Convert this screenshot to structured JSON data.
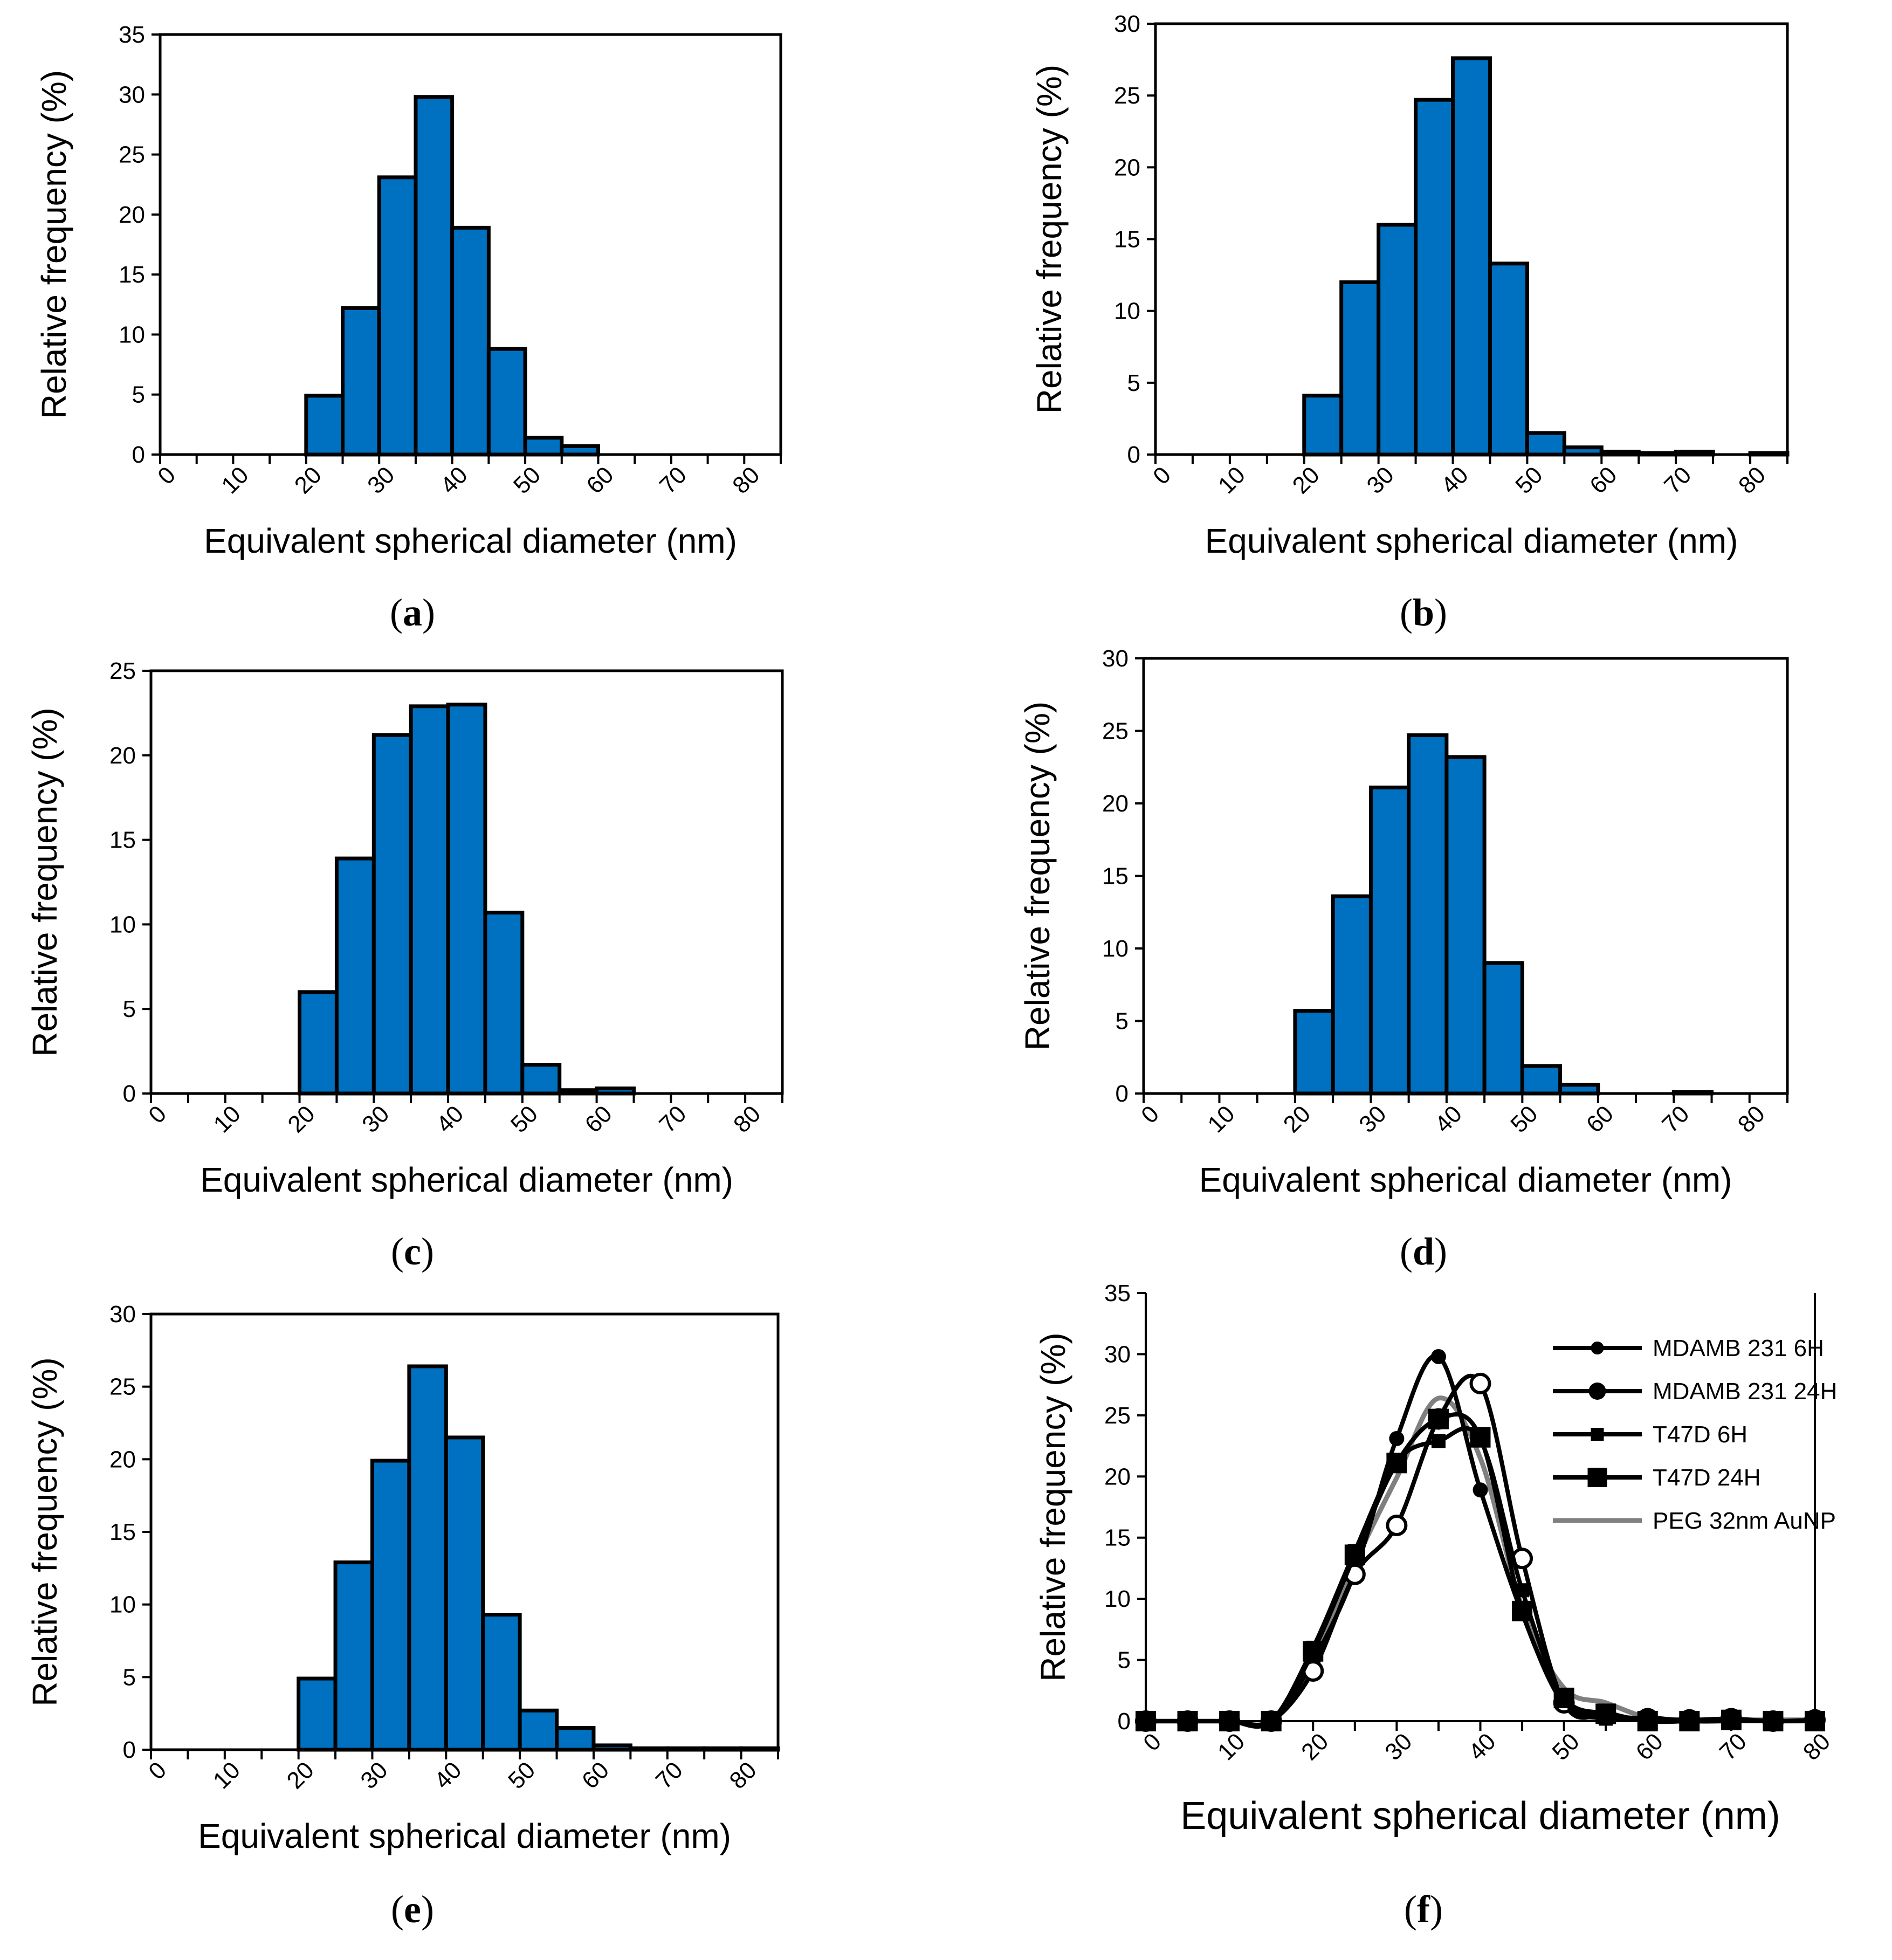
{
  "figure": {
    "panels": [
      {
        "id": "a",
        "label_text": "a",
        "chart_ref": 0
      },
      {
        "id": "b",
        "label_text": "b",
        "chart_ref": 1
      },
      {
        "id": "c",
        "label_text": "c",
        "chart_ref": 2
      },
      {
        "id": "d",
        "label_text": "d",
        "chart_ref": 3
      },
      {
        "id": "e",
        "label_text": "e",
        "chart_ref": 4
      },
      {
        "id": "f",
        "label_text": "f",
        "chart_ref": 5
      }
    ]
  },
  "colors": {
    "bar_fill": "#0070C0",
    "ink": "#000000",
    "peg_line": "#808080"
  },
  "chart_data": [
    {
      "type": "bar",
      "panel": "a",
      "xlabel": "Equivalent spherical diameter (nm)",
      "ylabel": "Relative frequency (%)",
      "x_ticks": [
        "0",
        "10",
        "20",
        "30",
        "40",
        "50",
        "60",
        "70",
        "80"
      ],
      "y_ticks": [
        "0",
        "5",
        "10",
        "15",
        "20",
        "25",
        "30",
        "35"
      ],
      "ylim": [
        0,
        35
      ],
      "xlim": [
        0,
        85
      ],
      "bin_width": 5,
      "bin_starts": [
        0,
        5,
        10,
        15,
        20,
        25,
        30,
        35,
        40,
        45,
        50,
        55,
        60,
        65,
        70,
        75,
        80
      ],
      "values": [
        0,
        0,
        0,
        0,
        4.9,
        12.2,
        23.1,
        29.8,
        18.9,
        8.8,
        1.4,
        0.7,
        0,
        0,
        0,
        0,
        0
      ]
    },
    {
      "type": "bar",
      "panel": "b",
      "xlabel": "Equivalent spherical diameter (nm)",
      "ylabel": "Relative frequency (%)",
      "x_ticks": [
        "0",
        "10",
        "20",
        "30",
        "40",
        "50",
        "60",
        "70",
        "80"
      ],
      "y_ticks": [
        "0",
        "5",
        "10",
        "15",
        "20",
        "25",
        "30"
      ],
      "ylim": [
        0,
        30
      ],
      "xlim": [
        0,
        85
      ],
      "bin_width": 5,
      "bin_starts": [
        0,
        5,
        10,
        15,
        20,
        25,
        30,
        35,
        40,
        45,
        50,
        55,
        60,
        65,
        70,
        75,
        80
      ],
      "values": [
        0,
        0,
        0,
        0,
        4.1,
        12,
        16,
        24.7,
        27.6,
        13.3,
        1.5,
        0.5,
        0.2,
        0.1,
        0.2,
        0,
        0.1
      ]
    },
    {
      "type": "bar",
      "panel": "c",
      "xlabel": "Equivalent spherical diameter (nm)",
      "ylabel": "Relative frequency (%)",
      "x_ticks": [
        "0",
        "10",
        "20",
        "30",
        "40",
        "50",
        "60",
        "70",
        "80"
      ],
      "y_ticks": [
        "0",
        "5",
        "10",
        "15",
        "20",
        "25"
      ],
      "ylim": [
        0,
        25
      ],
      "xlim": [
        0,
        85
      ],
      "bin_width": 5,
      "bin_starts": [
        0,
        5,
        10,
        15,
        20,
        25,
        30,
        35,
        40,
        45,
        50,
        55,
        60,
        65,
        70,
        75,
        80
      ],
      "values": [
        0,
        0,
        0,
        0,
        6,
        13.9,
        21.2,
        22.9,
        23,
        10.7,
        1.7,
        0.2,
        0.3,
        0,
        0,
        0,
        0
      ]
    },
    {
      "type": "bar",
      "panel": "d",
      "xlabel": "Equivalent spherical diameter (nm)",
      "ylabel": "Relative frequency (%)",
      "x_ticks": [
        "0",
        "10",
        "20",
        "30",
        "40",
        "50",
        "60",
        "70",
        "80"
      ],
      "y_ticks": [
        "0",
        "5",
        "10",
        "15",
        "20",
        "25",
        "30"
      ],
      "ylim": [
        0,
        30
      ],
      "xlim": [
        0,
        85
      ],
      "bin_width": 5,
      "bin_starts": [
        0,
        5,
        10,
        15,
        20,
        25,
        30,
        35,
        40,
        45,
        50,
        55,
        60,
        65,
        70,
        75,
        80
      ],
      "values": [
        0,
        0,
        0,
        0,
        5.7,
        13.6,
        21.1,
        24.7,
        23.2,
        9,
        1.9,
        0.6,
        0,
        0,
        0.1,
        0,
        0
      ]
    },
    {
      "type": "bar",
      "panel": "e",
      "xlabel": "Equivalent spherical diameter (nm)",
      "ylabel": "Relative frequency (%)",
      "x_ticks": [
        "0",
        "10",
        "20",
        "30",
        "40",
        "50",
        "60",
        "70",
        "80"
      ],
      "y_ticks": [
        "0",
        "5",
        "10",
        "15",
        "20",
        "25",
        "30"
      ],
      "ylim": [
        0,
        30
      ],
      "xlim": [
        0,
        85
      ],
      "bin_width": 5,
      "bin_starts": [
        0,
        5,
        10,
        15,
        20,
        25,
        30,
        35,
        40,
        45,
        50,
        55,
        60,
        65,
        70,
        75,
        80
      ],
      "values": [
        0,
        0,
        0,
        0,
        4.9,
        12.9,
        19.9,
        26.4,
        21.5,
        9.3,
        2.7,
        1.5,
        0.3,
        0.1,
        0.1,
        0.1,
        0.1
      ]
    },
    {
      "type": "line",
      "panel": "f",
      "xlabel": "Equivalent spherical diameter (nm)",
      "ylabel": "Relative frequency (%)",
      "x_ticks": [
        "0",
        "10",
        "20",
        "30",
        "40",
        "50",
        "60",
        "70",
        "80"
      ],
      "y_ticks": [
        "0",
        "5",
        "10",
        "15",
        "20",
        "25",
        "30",
        "35"
      ],
      "ylim": [
        0,
        35
      ],
      "xlim": [
        0,
        80
      ],
      "legend_position": "right",
      "x": [
        0,
        5,
        10,
        15,
        20,
        25,
        30,
        35,
        40,
        45,
        50,
        55,
        60,
        65,
        70,
        75,
        80
      ],
      "series": [
        {
          "name": "MDAMB 231 6H",
          "marker": "small-circle",
          "values": [
            0,
            0,
            0,
            0,
            4.9,
            12.2,
            23.1,
            29.8,
            18.9,
            8.8,
            1.4,
            0.7,
            0,
            0,
            0,
            0,
            0
          ]
        },
        {
          "name": "MDAMB 231 24H",
          "marker": "open-circle",
          "values": [
            0,
            0,
            0,
            0,
            4.1,
            12,
            16,
            24.7,
            27.6,
            13.3,
            1.5,
            0.5,
            0.2,
            0.1,
            0.2,
            0,
            0.1
          ]
        },
        {
          "name": "T47D 6H",
          "marker": "small-square",
          "values": [
            0,
            0,
            0,
            0,
            6,
            13.9,
            21.2,
            22.9,
            23,
            10.7,
            1.7,
            0.2,
            0.3,
            0,
            0,
            0,
            0
          ]
        },
        {
          "name": "T47D 24H",
          "marker": "square",
          "values": [
            0,
            0,
            0,
            0,
            5.7,
            13.6,
            21.1,
            24.7,
            23.2,
            9,
            1.9,
            0.6,
            0,
            0,
            0.1,
            0,
            0
          ]
        },
        {
          "name": "PEG 32nm AuNP",
          "marker": "none",
          "values": [
            0,
            0,
            0,
            0,
            4.9,
            12.9,
            19.9,
            26.4,
            21.5,
            9.3,
            2.7,
            1.5,
            0.3,
            0.1,
            0.1,
            0.1,
            0.1
          ]
        }
      ]
    }
  ]
}
